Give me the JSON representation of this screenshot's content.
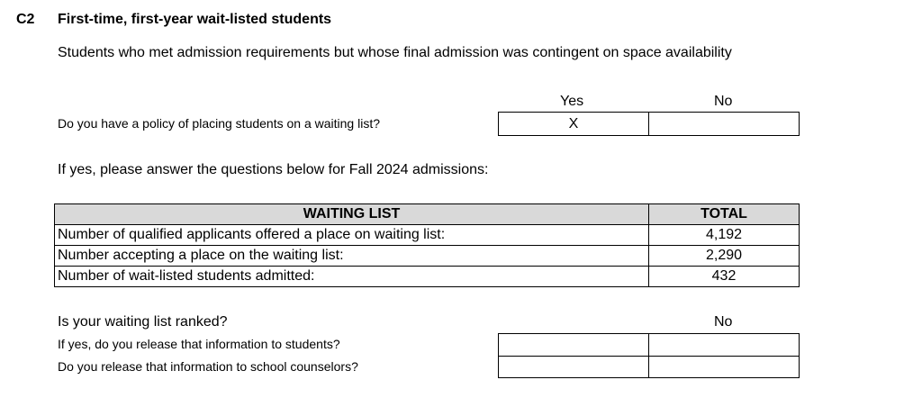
{
  "section": {
    "code": "C2",
    "title": "First-time, first-year wait-listed students",
    "subtitle": "Students who met admission requirements but whose final admission was contingent on space availability"
  },
  "policy": {
    "yes_label": "Yes",
    "no_label": "No",
    "question": "Do you have a policy of placing students on a waiting list?",
    "yes_value": "X",
    "no_value": ""
  },
  "instruction": "If yes, please answer the questions below for Fall 2024 admissions:",
  "waiting_table": {
    "headers": [
      "WAITING LIST",
      "TOTAL"
    ],
    "rows": [
      {
        "label": "Number of qualified applicants offered a place on waiting list:",
        "value": "4,192"
      },
      {
        "label": "Number accepting a place on the waiting list:",
        "value": "2,290"
      },
      {
        "label": "Number of wait-listed students admitted:",
        "value": "432"
      }
    ]
  },
  "ranked": {
    "question": "Is your waiting list ranked?",
    "answer": "No",
    "q_students": "If yes, do you release that information to students?",
    "q_counselors": "Do you release that information to school counselors?"
  }
}
